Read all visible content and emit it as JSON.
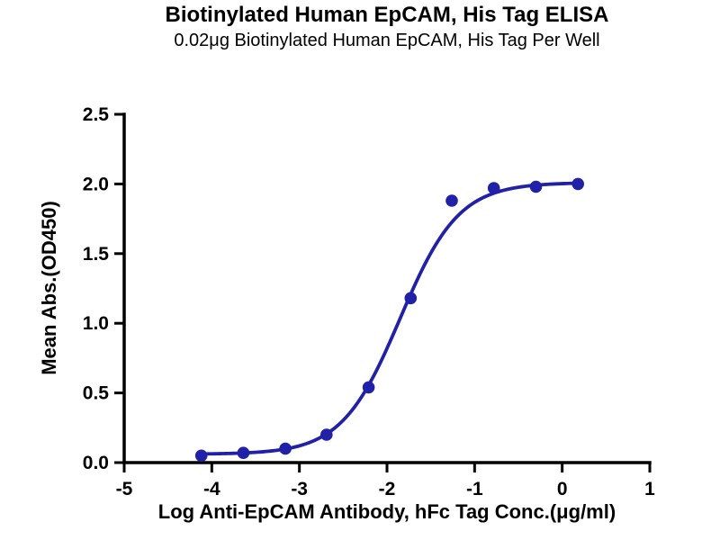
{
  "chart_data": {
    "type": "scatter",
    "title": "Biotinylated Human EpCAM, His Tag ELISA",
    "subtitle": "0.02μg Biotinylated Human EpCAM, His Tag Per Well",
    "xlabel": "Log Anti-EpCAM Antibody, hFc Tag Conc.(μg/ml)",
    "ylabel": "Mean Abs.(OD450)",
    "xlim": [
      -5,
      1
    ],
    "ylim": [
      0,
      2.5
    ],
    "grid": false,
    "legend": null,
    "x_ticks": {
      "values": [
        -5,
        -4,
        -3,
        -2,
        -1,
        0,
        1
      ],
      "labels": [
        "-5",
        "-4",
        "-3",
        "-2",
        "-1",
        "0",
        "1"
      ]
    },
    "y_ticks": {
      "values": [
        0,
        0.5,
        1.0,
        1.5,
        2.0,
        2.5
      ],
      "labels": [
        "0.0",
        "0.5",
        "1.0",
        "1.5",
        "2.0",
        "2.5"
      ]
    },
    "points": {
      "x": [
        -4.12,
        -3.64,
        -3.16,
        -2.69,
        -2.21,
        -1.73,
        -1.26,
        -0.78,
        -0.3,
        0.18
      ],
      "y": [
        0.05,
        0.07,
        0.1,
        0.2,
        0.54,
        1.18,
        1.88,
        1.97,
        1.98,
        2.0
      ]
    },
    "fit_curve": {
      "model": "4PL",
      "bottom": 0.06,
      "top": 2.01,
      "logEC50": -1.85,
      "hillslope": 1.3,
      "x_range": [
        -4.12,
        0.18
      ]
    },
    "series_color": "#2121a8",
    "axis_color": "#000000"
  }
}
